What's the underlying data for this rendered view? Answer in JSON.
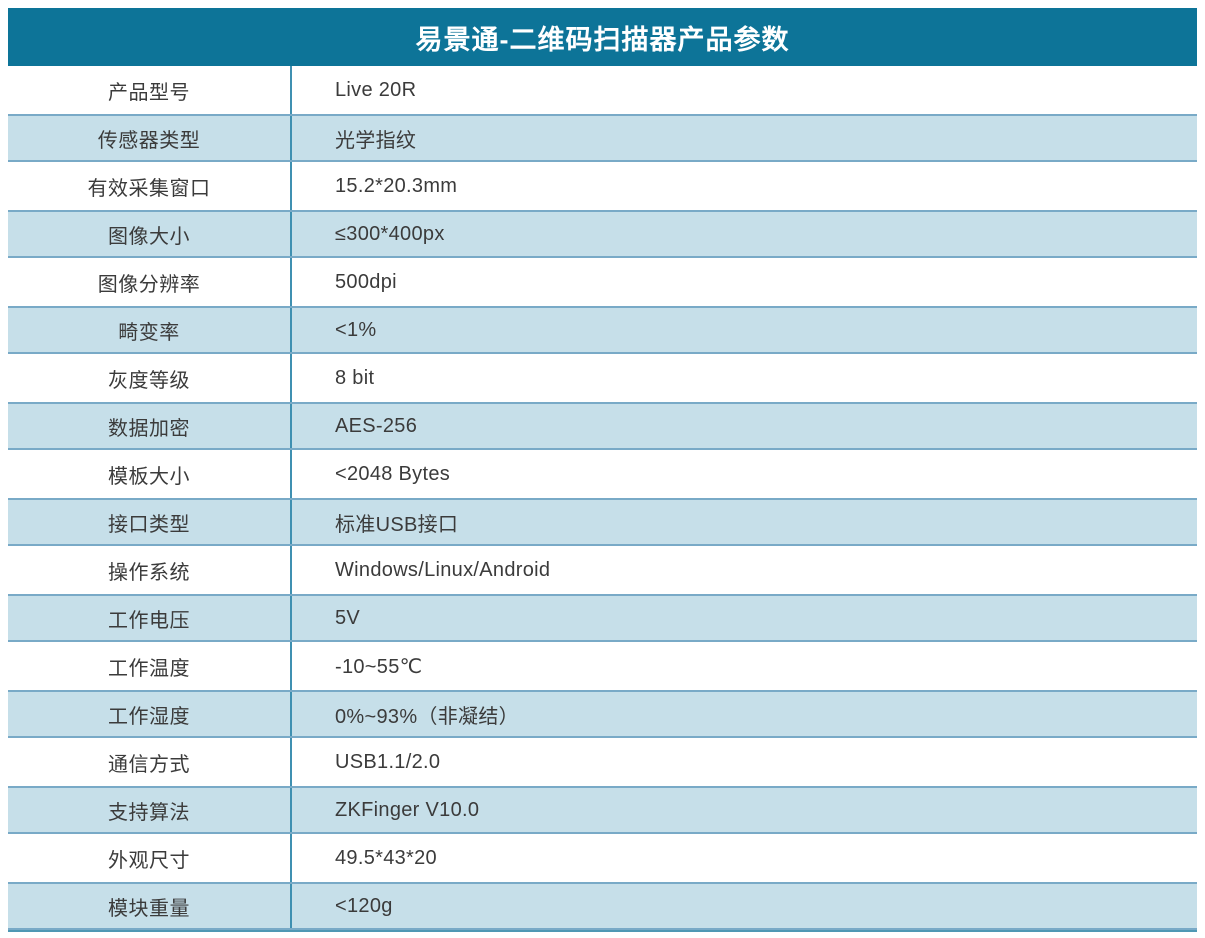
{
  "table": {
    "title": "易景通-二维码扫描器产品参数",
    "rows": [
      {
        "label": "产品型号",
        "value": "Live 20R"
      },
      {
        "label": "传感器类型",
        "value": "光学指纹"
      },
      {
        "label": "有效采集窗口",
        "value": "15.2*20.3mm"
      },
      {
        "label": "图像大小",
        "value": "≤300*400px"
      },
      {
        "label": "图像分辨率",
        "value": "500dpi"
      },
      {
        "label": "畸变率",
        "value": "<1%"
      },
      {
        "label": "灰度等级",
        "value": "8 bit"
      },
      {
        "label": "数据加密",
        "value": "AES-256"
      },
      {
        "label": "模板大小",
        "value": "<2048 Bytes"
      },
      {
        "label": "接口类型",
        "value": "标准USB接口"
      },
      {
        "label": "操作系统",
        "value": "Windows/Linux/Android"
      },
      {
        "label": "工作电压",
        "value": "5V"
      },
      {
        "label": "工作温度",
        "value": "-10~55℃"
      },
      {
        "label": "工作湿度",
        "value": "0%~93%（非凝结）"
      },
      {
        "label": "通信方式",
        "value": "USB1.1/2.0"
      },
      {
        "label": "支持算法",
        "value": "ZKFinger V10.0"
      },
      {
        "label": "外观尺寸",
        "value": "49.5*43*20"
      },
      {
        "label": "模块重量",
        "value": "<120g"
      }
    ],
    "colors": {
      "header_bg": "#0d7498",
      "header_text": "#ffffff",
      "alt_row_bg": "#c6dfe9",
      "row_border": "#79aac7",
      "divider": "#3f90b1",
      "bottom_line": "#4f98b4",
      "text": "#3b3b3b"
    }
  }
}
